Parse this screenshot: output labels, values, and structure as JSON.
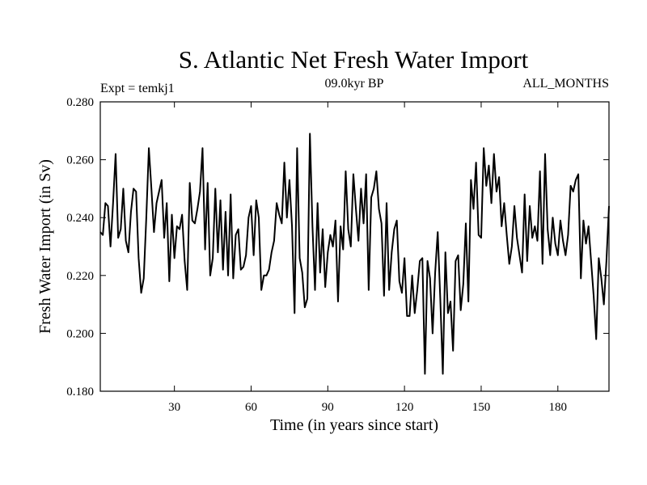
{
  "chart_data": {
    "type": "line",
    "title": "S. Atlantic Net Fresh Water Import",
    "subtitle_left": "Expt = temkj1",
    "subtitle_center": "09.0kyr BP",
    "subtitle_right": "ALL_MONTHS",
    "xlabel": "Time (in years since start)",
    "ylabel": "Fresh Water Import (in Sv)",
    "xlim": [
      1,
      200
    ],
    "ylim": [
      0.18,
      0.28
    ],
    "xticks": [
      30,
      60,
      90,
      120,
      150,
      180
    ],
    "yticks": [
      0.18,
      0.2,
      0.22,
      0.24,
      0.26,
      0.28
    ],
    "xtick_labels": [
      "30",
      "60",
      "90",
      "120",
      "150",
      "180"
    ],
    "ytick_labels": [
      "0.180",
      "0.200",
      "0.220",
      "0.240",
      "0.260",
      "0.280"
    ],
    "series": [
      {
        "name": "Net Fresh Water Import",
        "x_start": 1,
        "x_step": 1,
        "values": [
          0.235,
          0.234,
          0.245,
          0.244,
          0.23,
          0.245,
          0.262,
          0.233,
          0.236,
          0.25,
          0.232,
          0.228,
          0.242,
          0.25,
          0.249,
          0.226,
          0.214,
          0.219,
          0.24,
          0.264,
          0.25,
          0.235,
          0.245,
          0.249,
          0.253,
          0.233,
          0.245,
          0.218,
          0.241,
          0.226,
          0.237,
          0.236,
          0.241,
          0.225,
          0.215,
          0.252,
          0.239,
          0.238,
          0.243,
          0.249,
          0.264,
          0.229,
          0.252,
          0.22,
          0.226,
          0.25,
          0.228,
          0.246,
          0.222,
          0.242,
          0.22,
          0.248,
          0.219,
          0.234,
          0.236,
          0.222,
          0.223,
          0.227,
          0.24,
          0.244,
          0.227,
          0.246,
          0.24,
          0.215,
          0.22,
          0.22,
          0.222,
          0.228,
          0.232,
          0.245,
          0.241,
          0.238,
          0.259,
          0.24,
          0.253,
          0.237,
          0.207,
          0.264,
          0.226,
          0.221,
          0.209,
          0.212,
          0.269,
          0.237,
          0.215,
          0.245,
          0.221,
          0.236,
          0.216,
          0.228,
          0.234,
          0.23,
          0.239,
          0.211,
          0.237,
          0.229,
          0.256,
          0.236,
          0.23,
          0.255,
          0.243,
          0.232,
          0.25,
          0.238,
          0.255,
          0.215,
          0.247,
          0.25,
          0.256,
          0.243,
          0.238,
          0.213,
          0.245,
          0.215,
          0.228,
          0.236,
          0.239,
          0.218,
          0.214,
          0.226,
          0.206,
          0.206,
          0.22,
          0.207,
          0.215,
          0.225,
          0.226,
          0.186,
          0.225,
          0.219,
          0.2,
          0.221,
          0.235,
          0.212,
          0.186,
          0.228,
          0.207,
          0.211,
          0.194,
          0.225,
          0.227,
          0.208,
          0.217,
          0.238,
          0.211,
          0.253,
          0.243,
          0.259,
          0.234,
          0.233,
          0.264,
          0.251,
          0.258,
          0.245,
          0.262,
          0.249,
          0.254,
          0.237,
          0.245,
          0.234,
          0.224,
          0.23,
          0.244,
          0.233,
          0.227,
          0.221,
          0.248,
          0.225,
          0.244,
          0.233,
          0.237,
          0.232,
          0.256,
          0.224,
          0.262,
          0.236,
          0.227,
          0.24,
          0.231,
          0.227,
          0.239,
          0.232,
          0.227,
          0.234,
          0.251,
          0.249,
          0.253,
          0.255,
          0.219,
          0.239,
          0.231,
          0.237,
          0.225,
          0.213,
          0.198,
          0.226,
          0.219,
          0.21,
          0.225,
          0.244
        ]
      }
    ]
  }
}
